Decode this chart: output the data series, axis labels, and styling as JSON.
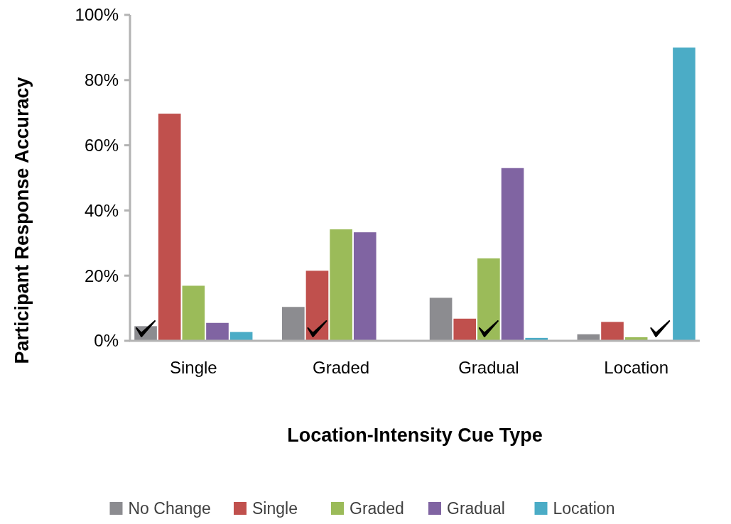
{
  "chart_data": {
    "type": "bar",
    "xlabel": "Location-Intensity Cue Type",
    "ylabel": "Participant Response Accuracy",
    "categories": [
      "Single",
      "Graded",
      "Gradual",
      "Location"
    ],
    "series": [
      {
        "name": "No Change",
        "color": "#8c8c90",
        "values": [
          4.5,
          10.4,
          13.2,
          2.0
        ]
      },
      {
        "name": "Single",
        "color": "#c0504d",
        "values": [
          69.7,
          21.5,
          6.8,
          5.8
        ]
      },
      {
        "name": "Graded",
        "color": "#9bbb59",
        "values": [
          16.9,
          34.2,
          25.3,
          1.1
        ]
      },
      {
        "name": "Gradual",
        "color": "#8064a2",
        "values": [
          5.5,
          33.3,
          53.0,
          0
        ]
      },
      {
        "name": "Location",
        "color": "#4bacc6",
        "values": [
          2.7,
          0,
          0.9,
          90
        ]
      }
    ],
    "ylim": [
      0,
      100
    ],
    "yticks": [
      {
        "value": 0,
        "label": "0%"
      },
      {
        "value": 20,
        "label": "20%"
      },
      {
        "value": 40,
        "label": "40%"
      },
      {
        "value": 60,
        "label": "60%"
      },
      {
        "value": 80,
        "label": "80%"
      },
      {
        "value": 100,
        "label": "100%"
      }
    ],
    "legend": "bottom"
  }
}
